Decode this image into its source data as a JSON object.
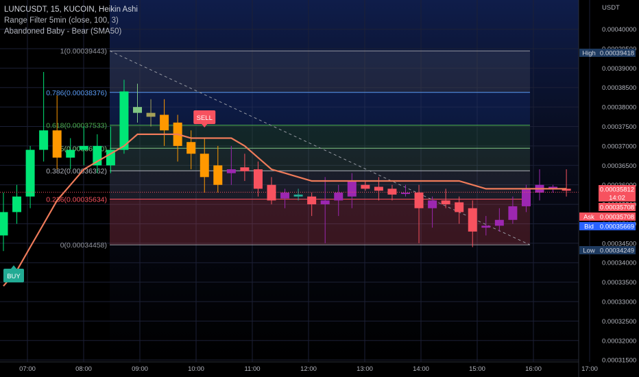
{
  "legend": {
    "title": "LUNCUSDT, 15, KUCOIN, Heikin Ashi",
    "indicator1": "Range Filter  5min (close, 100, 3)",
    "indicator2": "Abandoned Baby - Bear (SMA50)"
  },
  "chart_data": {
    "type": "candlestick",
    "axis_unit": "USDT",
    "x_ticks": [
      "07:00",
      "08:00",
      "09:00",
      "10:00",
      "11:00",
      "12:00",
      "13:00",
      "14:00",
      "15:00",
      "16:00",
      "17:00"
    ],
    "y_ticks": [
      "0.00040000",
      "0.00039500",
      "0.00039000",
      "0.00038500",
      "0.00038000",
      "0.00037500",
      "0.00037000",
      "0.00036500",
      "0.00036000",
      "0.00035500",
      "0.00035000",
      "0.00034500",
      "0.00034000",
      "0.00033500",
      "0.00033000",
      "0.00032500",
      "0.00032000",
      "0.00031500"
    ],
    "ylim": [
      0.0003145,
      0.0004075
    ],
    "fib_levels": [
      {
        "label": "1(0.00039443)",
        "value": 0.00039443,
        "color": "#9598a1"
      },
      {
        "label": "0.786(0.00038376)",
        "value": 0.00038376,
        "color": "#5b9cf6"
      },
      {
        "label": "0.618(0.00037533)",
        "value": 0.00037533,
        "color": "#4caf50"
      },
      {
        "label": "0.5(0.00036940)",
        "value": 0.0003694,
        "color": "#81c784"
      },
      {
        "label": "0.382(0.00036362)",
        "value": 0.00036362,
        "color": "#b2b5be"
      },
      {
        "label": "0.236(0.00035634)",
        "value": 0.00035634,
        "color": "#f7525f"
      },
      {
        "label": "0(0.00034458)",
        "value": 0.00034458,
        "color": "#9598a1"
      }
    ],
    "price_tags": [
      {
        "label": "High",
        "value": "0.00039418",
        "bg": "#1e3a5f",
        "fg": "#d1d4dc"
      },
      {
        "label": "",
        "value": "0.00035812",
        "bg": "#f7525f",
        "fg": "#ffffff"
      },
      {
        "label": "",
        "value": "14:02",
        "bg": "#f7525f",
        "fg": "#ffffff"
      },
      {
        "label": "",
        "value": "0.00035708",
        "bg": "#f7525f",
        "fg": "#ffffff"
      },
      {
        "label": "Ask",
        "value": "0.00035708",
        "bg": "#f7525f",
        "fg": "#ffffff"
      },
      {
        "label": "Bid",
        "value": "0.00035669",
        "bg": "#2962ff",
        "fg": "#ffffff"
      },
      {
        "label": "Low",
        "value": "0.00034249",
        "bg": "#1e3a5f",
        "fg": "#d1d4dc"
      }
    ],
    "signals": [
      {
        "label": "SELL",
        "color": "#f7525f"
      },
      {
        "label": "BUY",
        "color": "#22ab94"
      }
    ],
    "candles": [
      {
        "o": 0.000347,
        "h": 0.000358,
        "l": 0.000343,
        "c": 0.000353,
        "color": "#00e676"
      },
      {
        "o": 0.000353,
        "h": 0.00036,
        "l": 0.00035,
        "c": 0.000357,
        "color": "#00e676"
      },
      {
        "o": 0.000357,
        "h": 0.00037,
        "l": 0.000354,
        "c": 0.000369,
        "color": "#00e676"
      },
      {
        "o": 0.000369,
        "h": 0.000389,
        "l": 0.000366,
        "c": 0.000374,
        "color": "#00e676"
      },
      {
        "o": 0.000374,
        "h": 0.000383,
        "l": 0.000364,
        "c": 0.000367,
        "color": "#ff9800"
      },
      {
        "o": 0.000367,
        "h": 0.000372,
        "l": 0.000364,
        "c": 0.000369,
        "color": "#00e676"
      },
      {
        "o": 0.000369,
        "h": 0.000375,
        "l": 0.000365,
        "c": 0.00037,
        "color": "#00e676"
      },
      {
        "o": 0.00037,
        "h": 0.000373,
        "l": 0.000363,
        "c": 0.000365,
        "color": "#00e676"
      },
      {
        "o": 0.000365,
        "h": 0.000375,
        "l": 0.000363,
        "c": 0.000369,
        "color": "#00e676"
      },
      {
        "o": 0.000369,
        "h": 0.000387,
        "l": 0.000368,
        "c": 0.000384,
        "color": "#00e676"
      },
      {
        "o": 0.00038,
        "h": 0.000386,
        "l": 0.000376,
        "c": 0.0003785,
        "color": "#81c784"
      },
      {
        "o": 0.0003785,
        "h": 0.000382,
        "l": 0.000375,
        "c": 0.0003775,
        "color": "#a5a058"
      },
      {
        "o": 0.000378,
        "h": 0.000382,
        "l": 0.00037,
        "c": 0.000374,
        "color": "#ff9800"
      },
      {
        "o": 0.000376,
        "h": 0.000378,
        "l": 0.000366,
        "c": 0.00037,
        "color": "#ff9800"
      },
      {
        "o": 0.000371,
        "h": 0.000374,
        "l": 0.000364,
        "c": 0.000368,
        "color": "#ff9800"
      },
      {
        "o": 0.000368,
        "h": 0.000372,
        "l": 0.000358,
        "c": 0.000362,
        "color": "#ff9800"
      },
      {
        "o": 0.000365,
        "h": 0.00037,
        "l": 0.000358,
        "c": 0.00036,
        "color": "#ff9800"
      },
      {
        "o": 0.000363,
        "h": 0.00037,
        "l": 0.00036,
        "c": 0.000364,
        "color": "#9c27b0"
      },
      {
        "o": 0.0003645,
        "h": 0.000368,
        "l": 0.000361,
        "c": 0.0003635,
        "color": "#f7525f"
      },
      {
        "o": 0.000364,
        "h": 0.000366,
        "l": 0.000357,
        "c": 0.000359,
        "color": "#f7525f"
      },
      {
        "o": 0.00036,
        "h": 0.000362,
        "l": 0.000355,
        "c": 0.000356,
        "color": "#f7525f"
      },
      {
        "o": 0.0003565,
        "h": 0.000359,
        "l": 0.000354,
        "c": 0.000358,
        "color": "#9c27b0"
      },
      {
        "o": 0.0003575,
        "h": 0.000359,
        "l": 0.000356,
        "c": 0.000357,
        "color": "#22ab94"
      },
      {
        "o": 0.000357,
        "h": 0.000358,
        "l": 0.000352,
        "c": 0.000355,
        "color": "#f7525f"
      },
      {
        "o": 0.000355,
        "h": 0.000362,
        "l": 0.000345,
        "c": 0.000356,
        "color": "#9c27b0"
      },
      {
        "o": 0.000356,
        "h": 0.00036,
        "l": 0.000352,
        "c": 0.000358,
        "color": "#9c27b0"
      },
      {
        "o": 0.000357,
        "h": 0.000363,
        "l": 0.000354,
        "c": 0.000361,
        "color": "#9c27b0"
      },
      {
        "o": 0.00036,
        "h": 0.000361,
        "l": 0.0003585,
        "c": 0.000359,
        "color": "#f7525f"
      },
      {
        "o": 0.0003595,
        "h": 0.000362,
        "l": 0.000356,
        "c": 0.0003585,
        "color": "#f7525f"
      },
      {
        "o": 0.000359,
        "h": 0.00036,
        "l": 0.000356,
        "c": 0.0003575,
        "color": "#f7525f"
      },
      {
        "o": 0.000358,
        "h": 0.00036,
        "l": 0.000357,
        "c": 0.000358,
        "color": "#9c27b0"
      },
      {
        "o": 0.000358,
        "h": 0.00036,
        "l": 0.000345,
        "c": 0.000354,
        "color": "#f7525f"
      },
      {
        "o": 0.000354,
        "h": 0.000357,
        "l": 0.000349,
        "c": 0.000356,
        "color": "#9c27b0"
      },
      {
        "o": 0.000356,
        "h": 0.000359,
        "l": 0.000354,
        "c": 0.000355,
        "color": "#f7525f"
      },
      {
        "o": 0.0003555,
        "h": 0.000357,
        "l": 0.00035,
        "c": 0.000353,
        "color": "#f7525f"
      },
      {
        "o": 0.000354,
        "h": 0.000356,
        "l": 0.000344,
        "c": 0.000348,
        "color": "#f7525f"
      },
      {
        "o": 0.000349,
        "h": 0.000352,
        "l": 0.000347,
        "c": 0.0003495,
        "color": "#9c27b0"
      },
      {
        "o": 0.0003495,
        "h": 0.000354,
        "l": 0.000348,
        "c": 0.000351,
        "color": "#9c27b0"
      },
      {
        "o": 0.000351,
        "h": 0.000357,
        "l": 0.00035,
        "c": 0.0003545,
        "color": "#9c27b0"
      },
      {
        "o": 0.0003545,
        "h": 0.00036,
        "l": 0.000353,
        "c": 0.000359,
        "color": "#9c27b0"
      },
      {
        "o": 0.000358,
        "h": 0.000364,
        "l": 0.000356,
        "c": 0.00036,
        "color": "#9c27b0"
      },
      {
        "o": 0.0003595,
        "h": 0.00036,
        "l": 0.000358,
        "c": 0.000359,
        "color": "#9c27b0"
      },
      {
        "o": 0.000359,
        "h": 0.000364,
        "l": 0.000357,
        "c": 0.0003585,
        "color": "#f7525f"
      }
    ],
    "range_filter": [
      0.000334,
      0.000338,
      0.000344,
      0.00035,
      0.000356,
      0.00036,
      0.000364,
      0.000366,
      0.000368,
      0.00037,
      0.000373,
      0.000373,
      0.000373,
      0.000373,
      0.000372,
      0.000372,
      0.000372,
      0.000372,
      0.00037,
      0.000367,
      0.000364,
      0.000363,
      0.000362,
      0.000361,
      0.000361,
      0.000361,
      0.000361,
      0.000361,
      0.000361,
      0.000361,
      0.000361,
      0.000361,
      0.000361,
      0.000361,
      0.000361,
      0.00036,
      0.000359,
      0.000359,
      0.000359,
      0.000359,
      0.000359,
      0.000359,
      0.000359
    ]
  }
}
